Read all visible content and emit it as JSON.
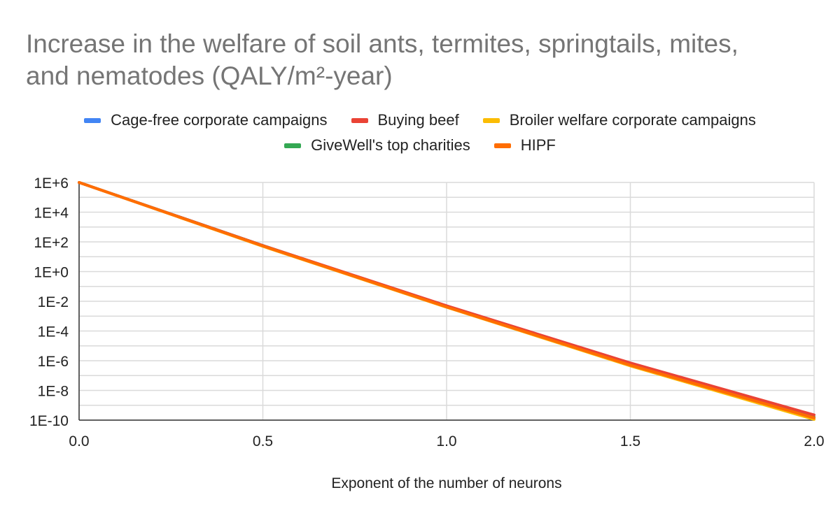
{
  "chart_data": {
    "type": "line",
    "title_lines": [
      "Increase in the welfare of soil ants, termites, springtails, mites,",
      "and nematodes (QALY/m²-year)"
    ],
    "xlabel": "Exponent of the number of neurons",
    "ylabel": "",
    "yscale": "log",
    "xlim": [
      0.0,
      2.0
    ],
    "ylim_log10": [
      -10,
      6
    ],
    "x_ticks": [
      "0.0",
      "0.5",
      "1.0",
      "1.5",
      "2.0"
    ],
    "y_ticks": [
      "1E+6",
      "1E+4",
      "1E+2",
      "1E+0",
      "1E-2",
      "1E-4",
      "1E-6",
      "1E-8",
      "1E-10"
    ],
    "x": [
      0.0,
      0.5,
      1.0,
      1.5,
      2.0
    ],
    "series": [
      {
        "name": "Cage-free corporate campaigns",
        "color": "#4285f4",
        "values_log10": [
          6.0,
          1.75,
          -2.35,
          -6.25,
          -9.8
        ]
      },
      {
        "name": "Buying beef",
        "color": "#ea4335",
        "values_log10": [
          6.0,
          1.75,
          -2.3,
          -6.15,
          -9.65
        ]
      },
      {
        "name": "Broiler welfare corporate campaigns",
        "color": "#fbbc04",
        "values_log10": [
          6.0,
          1.7,
          -2.4,
          -6.35,
          -9.95
        ]
      },
      {
        "name": "GiveWell's top charities",
        "color": "#34a853",
        "values_log10": [
          6.0,
          1.75,
          -2.35,
          -6.25,
          -9.8
        ]
      },
      {
        "name": "HIPF",
        "color": "#ff6d01",
        "values_log10": [
          6.0,
          1.72,
          -2.38,
          -6.3,
          -9.85
        ]
      }
    ]
  }
}
